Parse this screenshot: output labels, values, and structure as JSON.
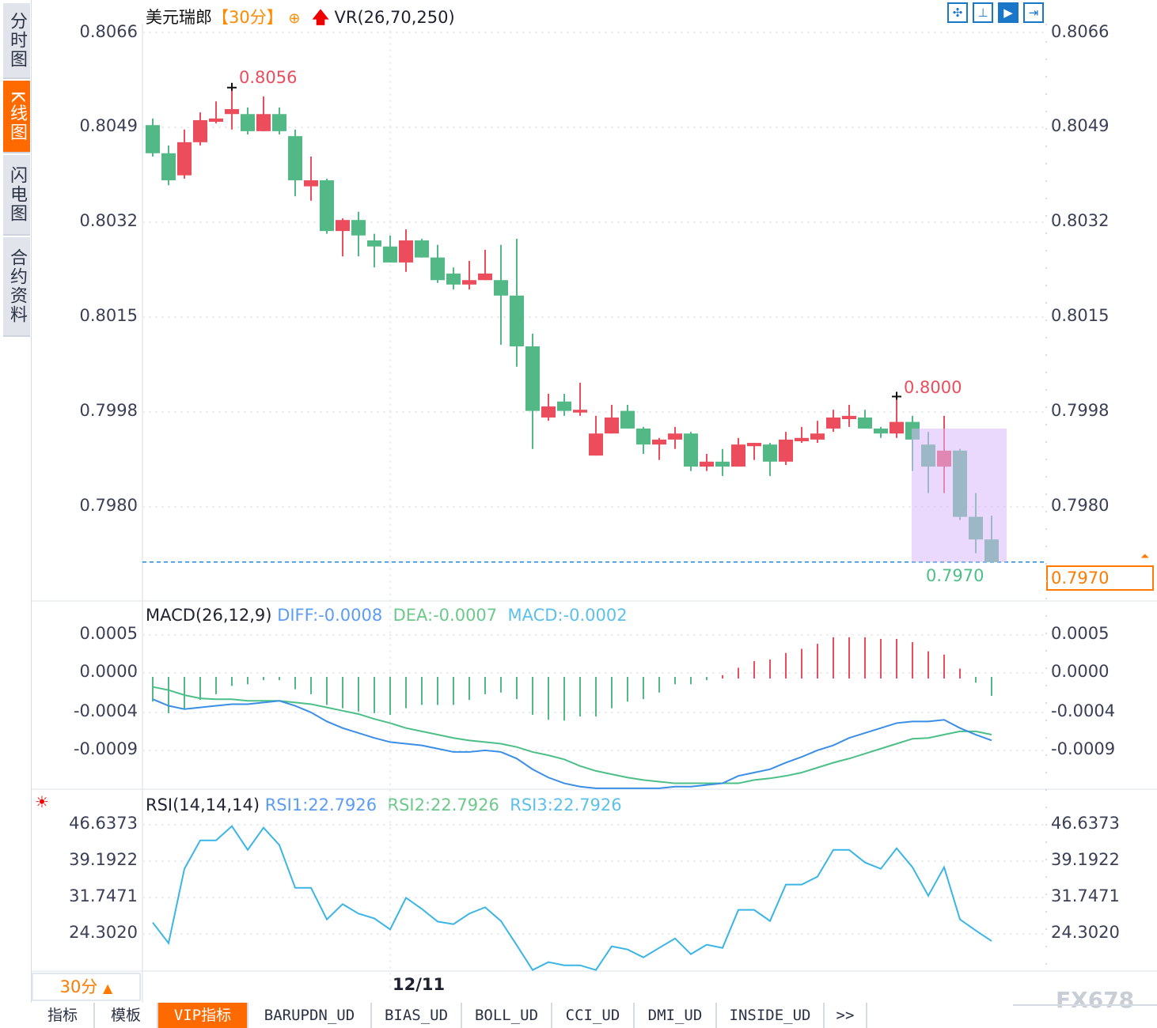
{
  "sidebar": {
    "tabs": [
      {
        "label": "分时图",
        "active": false
      },
      {
        "label": "K线图",
        "active": true
      },
      {
        "label": "闪电图",
        "active": false
      },
      {
        "label": "合约资料",
        "active": false
      }
    ]
  },
  "header": {
    "symbol": "美元瑞郎",
    "period": "【30分】",
    "add_icon": "circle-plus-icon",
    "arrow_icon": "red-up-arrow-icon",
    "indicator": "VR(26,70,250)"
  },
  "toolbar": {
    "icons": [
      "crosshair-icon",
      "range-measure-icon",
      "draw-mode-icon",
      "scroll-to-end-icon"
    ],
    "active_index": 2
  },
  "colors": {
    "up": "#ec4d5c",
    "down": "#52b986",
    "diff": "#3a8ee6",
    "dea": "#4cbf87",
    "rsi": "#3ab5e6",
    "accent": "#ff6a00",
    "highlight": "#d9b8fb",
    "last_price_line": "#1e88e5"
  },
  "price_axis": {
    "ticks": [
      "0.8066",
      "0.8049",
      "0.8032",
      "0.8015",
      "0.7998",
      "0.7980"
    ]
  },
  "price_markers": {
    "high_label": "0.8056",
    "high_index": 5,
    "high_value": 0.8056,
    "local_high_label": "0.8000",
    "local_high_index": 47,
    "local_high_value": 0.8,
    "low_label": "0.7970",
    "low_index": 53,
    "last_price": "0.7970",
    "last_price_value": 0.797
  },
  "highlight": {
    "from_index": 49,
    "to_index": 53,
    "top": 0.79942,
    "bottom": 0.797
  },
  "chart_data": [
    {
      "type": "candlestick",
      "title": "美元瑞郎【30分】",
      "ohlc": [
        [
          0.80492,
          0.80504,
          0.80435,
          0.80441
        ],
        [
          0.80441,
          0.80455,
          0.80383,
          0.80392
        ],
        [
          0.80401,
          0.80484,
          0.80395,
          0.80461
        ],
        [
          0.80461,
          0.80515,
          0.80455,
          0.80501
        ],
        [
          0.80498,
          0.80535,
          0.80495,
          0.80504
        ],
        [
          0.80512,
          0.8056,
          0.80484,
          0.80521
        ],
        [
          0.80512,
          0.80524,
          0.80475,
          0.80481
        ],
        [
          0.80481,
          0.80544,
          0.80481,
          0.80512
        ],
        [
          0.80512,
          0.80524,
          0.80475,
          0.80481
        ],
        [
          0.80472,
          0.80484,
          0.80363,
          0.80392
        ],
        [
          0.80381,
          0.80435,
          0.80355,
          0.80392
        ],
        [
          0.80392,
          0.80395,
          0.80295,
          0.803
        ],
        [
          0.803,
          0.80323,
          0.80254,
          0.8032
        ],
        [
          0.8032,
          0.80335,
          0.80254,
          0.80292
        ],
        [
          0.80283,
          0.80295,
          0.80234,
          0.80272
        ],
        [
          0.80272,
          0.80292,
          0.80243,
          0.80243
        ],
        [
          0.80243,
          0.80303,
          0.80226,
          0.80283
        ],
        [
          0.80283,
          0.80286,
          0.80252,
          0.80252
        ],
        [
          0.80252,
          0.80275,
          0.80206,
          0.80211
        ],
        [
          0.80223,
          0.80234,
          0.80194,
          0.80203
        ],
        [
          0.80203,
          0.80246,
          0.80194,
          0.80211
        ],
        [
          0.80211,
          0.80266,
          0.80211,
          0.80223
        ],
        [
          0.80211,
          0.80275,
          0.80094,
          0.80183
        ],
        [
          0.80183,
          0.80286,
          0.80054,
          0.80091
        ],
        [
          0.80091,
          0.80114,
          0.79905,
          0.79974
        ],
        [
          0.79962,
          0.80005,
          0.79956,
          0.79982
        ],
        [
          0.79991,
          0.80005,
          0.79965,
          0.79974
        ],
        [
          0.79971,
          0.80025,
          0.79965,
          0.79976
        ],
        [
          0.79893,
          0.79965,
          0.79893,
          0.79933
        ],
        [
          0.79933,
          0.79985,
          0.79933,
          0.79962
        ],
        [
          0.79974,
          0.79985,
          0.79942,
          0.79942
        ],
        [
          0.79942,
          0.79945,
          0.79896,
          0.79913
        ],
        [
          0.79913,
          0.79925,
          0.79885,
          0.79922
        ],
        [
          0.79922,
          0.79945,
          0.79905,
          0.79933
        ],
        [
          0.79933,
          0.79936,
          0.79865,
          0.79873
        ],
        [
          0.79873,
          0.79896,
          0.79865,
          0.79882
        ],
        [
          0.79882,
          0.79905,
          0.79856,
          0.79873
        ],
        [
          0.79873,
          0.79925,
          0.79873,
          0.79913
        ],
        [
          0.7991,
          0.79916,
          0.79885,
          0.79916
        ],
        [
          0.79913,
          0.79916,
          0.79856,
          0.79882
        ],
        [
          0.79882,
          0.79936,
          0.79876,
          0.79922
        ],
        [
          0.79919,
          0.79945,
          0.79916,
          0.79925
        ],
        [
          0.79922,
          0.79956,
          0.79916,
          0.79933
        ],
        [
          0.79942,
          0.79976,
          0.79936,
          0.79962
        ],
        [
          0.79959,
          0.79985,
          0.79945,
          0.79965
        ],
        [
          0.79962,
          0.79976,
          0.79942,
          0.79942
        ],
        [
          0.79942,
          0.79945,
          0.79925,
          0.79933
        ],
        [
          0.79933,
          0.8,
          0.79925,
          0.79954
        ],
        [
          0.79954,
          0.79965,
          0.79865,
          0.79922
        ],
        [
          0.79913,
          0.79936,
          0.79825,
          0.79873
        ],
        [
          0.79873,
          0.79965,
          0.79825,
          0.79902
        ],
        [
          0.79902,
          0.79905,
          0.79776,
          0.79782
        ],
        [
          0.79782,
          0.79825,
          0.79716,
          0.79741
        ],
        [
          0.79741,
          0.79784,
          0.797,
          0.797
        ]
      ],
      "x_label_ticks": [
        {
          "index": 15,
          "label": "12/11"
        }
      ],
      "ylim": [
        0.796,
        0.8066
      ]
    },
    {
      "type": "bar+line",
      "title": "MACD(26,12,9)",
      "ticks": [
        "0.0005",
        "0.0000",
        "-0.0004",
        "-0.0009"
      ],
      "macd": [
        -0.0003,
        -0.00044,
        -0.00039,
        -0.00028,
        -0.00021,
        -0.00011,
        -9e-05,
        -4e-05,
        -4e-05,
        -0.00015,
        -0.00021,
        -0.00034,
        -0.00038,
        -0.00042,
        -0.00044,
        -0.00046,
        -0.00038,
        -0.00034,
        -0.00034,
        -0.00034,
        -0.00028,
        -0.00021,
        -0.00019,
        -0.00027,
        -0.00046,
        -0.00052,
        -0.00053,
        -0.00048,
        -0.00048,
        -0.00038,
        -0.0003,
        -0.00027,
        -0.00019,
        -9e-05,
        -9e-05,
        -4e-05,
        4e-05,
        0.00013,
        0.00021,
        0.00023,
        0.00031,
        0.00036,
        0.00042,
        0.0005,
        0.0005,
        0.0005,
        0.00048,
        0.00048,
        0.00044,
        0.00033,
        0.00029,
        0.00012,
        -7e-05,
        -0.00023
      ],
      "diff": [
        -0.00028,
        -0.00036,
        -0.0004,
        -0.00038,
        -0.00036,
        -0.00034,
        -0.00034,
        -0.00032,
        -0.0003,
        -0.00036,
        -0.00044,
        -0.00055,
        -0.00063,
        -0.00069,
        -0.00075,
        -0.0008,
        -0.00082,
        -0.00084,
        -0.00088,
        -0.00092,
        -0.00092,
        -0.0009,
        -0.00092,
        -0.001,
        -0.00113,
        -0.00123,
        -0.0013,
        -0.00134,
        -0.00136,
        -0.00136,
        -0.00136,
        -0.00136,
        -0.00136,
        -0.00134,
        -0.00134,
        -0.00132,
        -0.0013,
        -0.00121,
        -0.00117,
        -0.00113,
        -0.00105,
        -0.00098,
        -0.0009,
        -0.00084,
        -0.00075,
        -0.00069,
        -0.00063,
        -0.00057,
        -0.00055,
        -0.00055,
        -0.00053,
        -0.00063,
        -0.00071,
        -0.00078
      ],
      "dea": [
        -0.00013,
        -0.00017,
        -0.00023,
        -0.00027,
        -0.00028,
        -0.00028,
        -0.0003,
        -0.0003,
        -0.0003,
        -0.00032,
        -0.00034,
        -0.00038,
        -0.00042,
        -0.00046,
        -0.00052,
        -0.00057,
        -0.00063,
        -0.00067,
        -0.00071,
        -0.00075,
        -0.00078,
        -0.0008,
        -0.00082,
        -0.00086,
        -0.00092,
        -0.00096,
        -0.00101,
        -0.00109,
        -0.00115,
        -0.00119,
        -0.00123,
        -0.00126,
        -0.00128,
        -0.0013,
        -0.0013,
        -0.0013,
        -0.0013,
        -0.0013,
        -0.00126,
        -0.00124,
        -0.00121,
        -0.00117,
        -0.00111,
        -0.00105,
        -0.001,
        -0.00094,
        -0.00088,
        -0.00082,
        -0.00076,
        -0.00075,
        -0.00071,
        -0.00067,
        -0.00067,
        -0.00071
      ],
      "legend": {
        "diff": "DIFF:-0.0008",
        "dea": "DEA:-0.0007",
        "macd": "MACD:-0.0002"
      }
    },
    {
      "type": "line",
      "title": "RSI(14,14,14)",
      "ticks": [
        "46.6373",
        "39.1922",
        "31.7471",
        "24.3020"
      ],
      "rsi": [
        26.57,
        22.36,
        37.57,
        43.4,
        43.4,
        46.31,
        41.46,
        45.99,
        42.43,
        33.69,
        33.69,
        27.22,
        30.35,
        28.4,
        27.43,
        25.17,
        31.64,
        29.37,
        26.78,
        26.24,
        28.4,
        29.7,
        26.89,
        21.93,
        16.86,
        18.48,
        17.83,
        17.83,
        16.86,
        21.71,
        21.07,
        19.45,
        21.39,
        23.33,
        20.1,
        22.04,
        21.39,
        29.16,
        29.16,
        26.89,
        34.34,
        34.34,
        35.96,
        41.46,
        41.46,
        38.87,
        37.57,
        41.78,
        37.9,
        32.07,
        37.9,
        27.22,
        24.95,
        22.79
      ],
      "legend": {
        "rsi1": "RSI1:22.7926",
        "rsi2": "RSI2:22.7926",
        "rsi3": "RSI3:22.7926"
      },
      "icon": "indicator-settings-sun-icon"
    }
  ],
  "footer": {
    "period_button": "30分",
    "period_arrow": "▲",
    "date_label": "12/11",
    "tabs": [
      "指标",
      "模板",
      "VIP指标",
      "BARUPDN_UD",
      "BIAS_UD",
      "BOLL_UD",
      "CCI_UD",
      "DMI_UD",
      "INSIDE_UD"
    ],
    "active_tab": 2,
    "more": ">>",
    "watermark": "FX678"
  }
}
